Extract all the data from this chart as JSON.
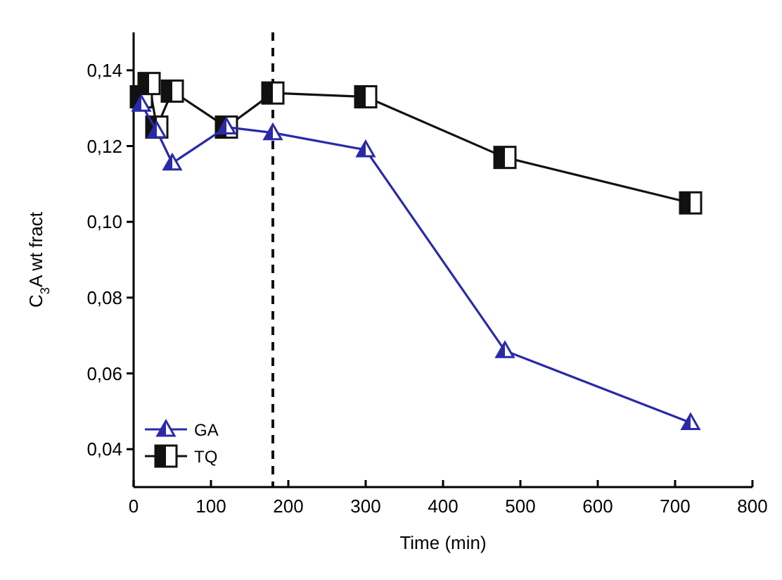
{
  "chart_data": {
    "type": "line",
    "xlabel": "Time (min)",
    "ylabel": "C$_{3}$A wt fract",
    "xlim": [
      0,
      800
    ],
    "xticks": [
      0,
      100,
      200,
      300,
      400,
      500,
      600,
      700,
      800
    ],
    "ylim": [
      0.03,
      0.15
    ],
    "yticks": [
      {
        "value": 0.04,
        "label": "0,04"
      },
      {
        "value": 0.06,
        "label": "0,06"
      },
      {
        "value": 0.08,
        "label": "0,08"
      },
      {
        "value": 0.1,
        "label": "0,10"
      },
      {
        "value": 0.12,
        "label": "0,12"
      },
      {
        "value": 0.14,
        "label": "0,14"
      }
    ],
    "legend": "bottom left",
    "grid": false,
    "line_style": "solid",
    "ref_lines": [
      {
        "axis": "x",
        "value": 180,
        "line_style": "dashed",
        "color": "#111111"
      }
    ],
    "series": [
      {
        "name": "GA",
        "color": "#2a2aa8",
        "marker": "triangle",
        "x": [
          10,
          30,
          50,
          120,
          180,
          300,
          480,
          720
        ],
        "values": [
          0.131,
          0.124,
          0.1155,
          0.125,
          0.1235,
          0.119,
          0.066,
          0.047
        ]
      },
      {
        "name": "TQ",
        "color": "#111111",
        "marker": "square",
        "x": [
          10,
          20,
          30,
          50,
          120,
          180,
          300,
          480,
          720
        ],
        "values": [
          0.133,
          0.1365,
          0.125,
          0.1345,
          0.125,
          0.134,
          0.133,
          0.117,
          0.105
        ]
      }
    ]
  }
}
